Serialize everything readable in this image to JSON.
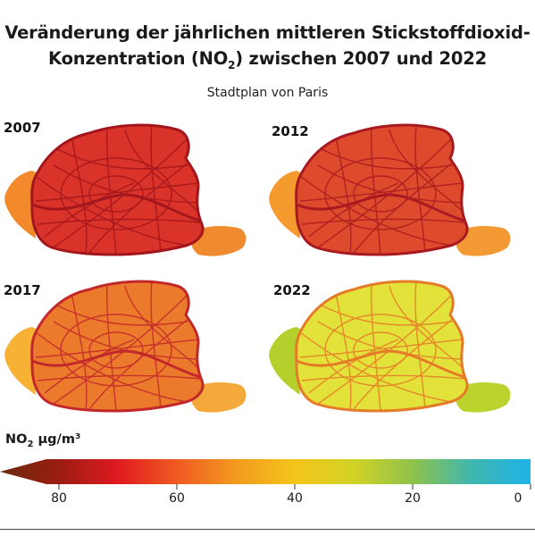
{
  "title": {
    "line1": "Veränderung der jährlichen mittleren Stickstoffdioxid-",
    "line2_pre": "Konzentration (NO",
    "line2_sub": "2",
    "line2_post": ") zwischen 2007 und 2022"
  },
  "subtitle": "Stadtplan von Paris",
  "maps": [
    {
      "year": "2007",
      "fill_color": "#d9332a",
      "road_color": "#a3161c",
      "west_color": "#f28a2c",
      "east_color": "#f08a2e"
    },
    {
      "year": "2012",
      "fill_color": "#de4a2c",
      "road_color": "#a81a20",
      "west_color": "#f59a2e",
      "east_color": "#f39a35"
    },
    {
      "year": "2017",
      "fill_color": "#eb7a2c",
      "road_color": "#c2282a",
      "west_color": "#f7b236",
      "east_color": "#f5a93a"
    },
    {
      "year": "2022",
      "fill_color": "#e3e23a",
      "road_color": "#e57a28",
      "west_color": "#b5d02c",
      "east_color": "#bcd22e"
    }
  ],
  "legend": {
    "label_pre": "NO",
    "label_sub": "2",
    "label_post": " µg/m³",
    "ticks": [
      "80",
      "60",
      "40",
      "20",
      "0"
    ],
    "scale_max": 90,
    "scale_min": 0,
    "gradient": [
      {
        "value": 90,
        "color": "#6b2a0e"
      },
      {
        "value": 80,
        "color": "#9b1d12"
      },
      {
        "value": 70,
        "color": "#e01a20"
      },
      {
        "value": 60,
        "color": "#ef5a22"
      },
      {
        "value": 50,
        "color": "#f39a1e"
      },
      {
        "value": 40,
        "color": "#f4c51a"
      },
      {
        "value": 30,
        "color": "#d2d226"
      },
      {
        "value": 20,
        "color": "#8fc24a"
      },
      {
        "value": 10,
        "color": "#3fb7b0"
      },
      {
        "value": 0,
        "color": "#1eb3e6"
      }
    ]
  }
}
